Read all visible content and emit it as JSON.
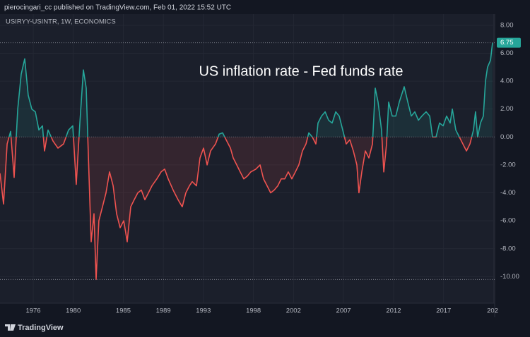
{
  "header": "pierocingari_cc published on TradingView.com, Feb 01, 2022 15:52 UTC",
  "footer": "TradingView",
  "chart_data": {
    "type": "line",
    "symbol": "USIRYY-USINTR, 1W, ECONOMICS",
    "title": "US inflation rate - Fed funds rate",
    "color_above": "#26a69a",
    "color_below": "#ef5350",
    "grid": true,
    "last_label": "6.75",
    "x": [
      1972.68,
      1973.03,
      1973.39,
      1973.74,
      1974.09,
      1974.45,
      1974.8,
      1975.15,
      1975.5,
      1975.86,
      1976.21,
      1976.56,
      1976.92,
      1977.13,
      1977.48,
      1977.98,
      1978.47,
      1979.03,
      1979.53,
      1979.95,
      1980.3,
      1980.66,
      1981.01,
      1981.29,
      1981.58,
      1981.79,
      1982.07,
      1982.28,
      1982.56,
      1982.92,
      1983.27,
      1983.62,
      1983.98,
      1984.33,
      1984.68,
      1985.04,
      1985.39,
      1985.74,
      1986.09,
      1986.45,
      1986.8,
      1987.15,
      1987.51,
      1987.86,
      1988.35,
      1988.78,
      1989.13,
      1989.48,
      1989.98,
      1990.47,
      1990.89,
      1991.25,
      1991.6,
      1991.88,
      1992.31,
      1992.66,
      1993.01,
      1993.37,
      1993.72,
      1994.21,
      1994.57,
      1994.92,
      1995.27,
      1995.7,
      1995.98,
      1996.33,
      1996.68,
      1997.04,
      1997.39,
      1997.74,
      1998.24,
      1998.66,
      1999.01,
      1999.37,
      1999.72,
      2000.07,
      2000.43,
      2000.78,
      2001.13,
      2001.48,
      2001.84,
      2002.19,
      2002.54,
      2002.9,
      2003.25,
      2003.53,
      2003.88,
      2004.24,
      2004.45,
      2004.8,
      2005.16,
      2005.51,
      2005.86,
      2006.22,
      2006.57,
      2006.92,
      2007.27,
      2007.63,
      2007.98,
      2008.33,
      2008.54,
      2008.83,
      2009.18,
      2009.53,
      2009.89,
      2010.17,
      2010.45,
      2010.8,
      2011.02,
      2011.3,
      2011.51,
      2011.86,
      2012.22,
      2012.57,
      2013.06,
      2013.42,
      2013.77,
      2014.12,
      2014.48,
      2014.83,
      2015.25,
      2015.61,
      2015.89,
      2016.24,
      2016.59,
      2016.95,
      2017.3,
      2017.65,
      2017.87,
      2018.22,
      2018.57,
      2018.92,
      2019.28,
      2019.63,
      2019.98,
      2020.19,
      2020.4,
      2020.68,
      2020.97,
      2021.18,
      2021.39,
      2021.68,
      2021.89
    ],
    "values": [
      -2.6,
      -4.8,
      -0.5,
      0.4,
      -2.9,
      2.0,
      4.5,
      5.6,
      3.0,
      2.0,
      1.8,
      0.5,
      0.8,
      -1.0,
      0.5,
      -0.3,
      -0.8,
      -0.5,
      0.5,
      0.8,
      -3.4,
      1.0,
      4.8,
      3.5,
      -3.0,
      -7.5,
      -5.5,
      -10.2,
      -6.0,
      -5.0,
      -4.0,
      -2.5,
      -3.5,
      -5.5,
      -6.5,
      -6.0,
      -7.5,
      -5.0,
      -4.5,
      -4.0,
      -3.8,
      -4.5,
      -4.0,
      -3.5,
      -3.0,
      -2.5,
      -2.3,
      -3.0,
      -3.8,
      -4.5,
      -5.0,
      -4.0,
      -3.5,
      -3.2,
      -3.5,
      -1.5,
      -0.8,
      -2.0,
      -1.0,
      -0.5,
      0.2,
      0.3,
      -0.2,
      -0.8,
      -1.5,
      -2.0,
      -2.5,
      -3.0,
      -2.8,
      -2.5,
      -2.3,
      -2.0,
      -3.0,
      -3.5,
      -4.0,
      -3.8,
      -3.5,
      -3.0,
      -3.0,
      -2.5,
      -3.0,
      -2.5,
      -2.0,
      -1.0,
      -0.5,
      0.3,
      0.0,
      -0.5,
      1.0,
      1.5,
      1.8,
      1.2,
      1.0,
      1.8,
      1.5,
      0.5,
      -0.5,
      -0.2,
      -1.0,
      -2.0,
      -4.0,
      -2.5,
      -1.0,
      -1.5,
      -0.5,
      3.5,
      2.5,
      0.5,
      -2.5,
      -0.5,
      2.5,
      1.5,
      1.5,
      2.5,
      3.6,
      2.5,
      1.5,
      1.8,
      1.2,
      1.5,
      1.8,
      1.5,
      0.0,
      0.0,
      1.0,
      0.8,
      1.5,
      1.0,
      2.0,
      0.5,
      0.0,
      -0.5,
      -1.0,
      -0.5,
      0.5,
      1.8,
      0.0,
      1.0,
      1.5,
      4.0,
      5.0,
      5.5,
      6.75
    ],
    "xlim": [
      1972.68,
      2022.1
    ],
    "ylim": [
      -11.9,
      8.8
    ],
    "xticks": [
      1976,
      1980,
      1985,
      1989,
      1993,
      1998,
      2002,
      2007,
      2012,
      2017,
      {
        "value": 2022,
        "label": "202"
      }
    ],
    "yticks": [
      {
        "value": 8,
        "label": "8.00"
      },
      {
        "value": 6,
        "label": "6.00"
      },
      {
        "value": 4,
        "label": "4.00"
      },
      {
        "value": 2,
        "label": "2.00"
      },
      {
        "value": 0,
        "label": "0.00"
      },
      {
        "value": -2,
        "label": "-2.00"
      },
      {
        "value": -4,
        "label": "-4.00"
      },
      {
        "value": -6,
        "label": "-6.00"
      },
      {
        "value": -8,
        "label": "-8.00"
      },
      {
        "value": -10,
        "label": "-10.00"
      }
    ]
  }
}
